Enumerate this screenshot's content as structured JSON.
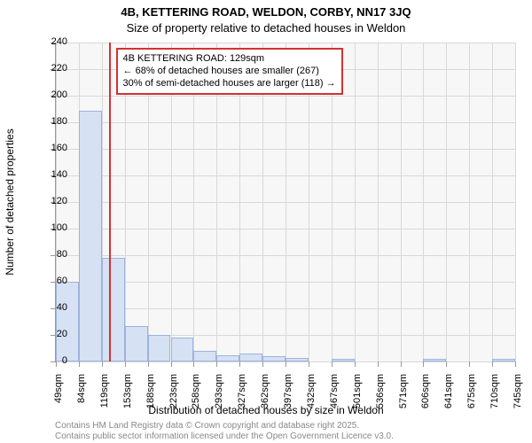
{
  "titles": {
    "main": "4B, KETTERING ROAD, WELDON, CORBY, NN17 3JQ",
    "sub": "Size of property relative to detached houses in Weldon"
  },
  "axes": {
    "y_title": "Number of detached properties",
    "x_title": "Distribution of detached houses by size in Weldon",
    "ylim": [
      0,
      240
    ],
    "ytick_step": 20,
    "yticks": [
      0,
      20,
      40,
      60,
      80,
      100,
      120,
      140,
      160,
      180,
      200,
      220,
      240
    ]
  },
  "chart": {
    "type": "histogram",
    "bar_fill": "#d6e1f4",
    "bar_border": "#9db3dd",
    "reference_line_color": "#d23232",
    "grid_color": "#d8d8d8",
    "background_color": "#ffffff",
    "reference_value": 129,
    "x_start": 49,
    "x_bin_width": 34.8,
    "x_labels": [
      "49sqm",
      "84sqm",
      "119sqm",
      "153sqm",
      "188sqm",
      "223sqm",
      "258sqm",
      "293sqm",
      "327sqm",
      "362sqm",
      "397sqm",
      "432sqm",
      "467sqm",
      "501sqm",
      "536sqm",
      "571sqm",
      "606sqm",
      "641sqm",
      "675sqm",
      "710sqm",
      "745sqm"
    ],
    "values": [
      60,
      189,
      78,
      27,
      20,
      18,
      8,
      5,
      6,
      4,
      3,
      0,
      2,
      0,
      0,
      0,
      2,
      0,
      0,
      2
    ]
  },
  "annotation": {
    "title_line": "4B KETTERING ROAD: 129sqm",
    "line2": "← 68% of detached houses are smaller (267)",
    "line3": "30% of semi-detached houses are larger (118) →",
    "box_border": "#d23232"
  },
  "footer": {
    "line1": "Contains HM Land Registry data © Crown copyright and database right 2025.",
    "line2": "Contains public sector information licensed under the Open Government Licence v3.0."
  }
}
